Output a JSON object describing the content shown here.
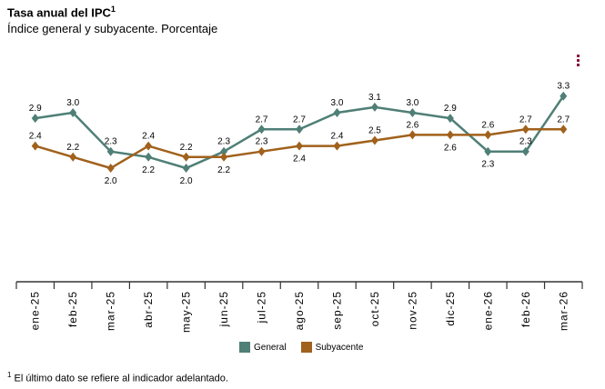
{
  "title": "Tasa anual del IPC",
  "title_sup": "1",
  "subtitle": "Índice general y subyacente. Porcentaje",
  "footnote_mark": "1",
  "footnote": "El último dato se refiere al indicador adelantado.",
  "chart_data": {
    "type": "line",
    "categories": [
      "ene-25",
      "feb-25",
      "mar-25",
      "abr-25",
      "may-25",
      "jun-25",
      "jul-25",
      "ago-25",
      "sep-25",
      "oct-25",
      "nov-25",
      "dic-25",
      "ene-26",
      "feb-26",
      "mar-26"
    ],
    "series": [
      {
        "name": "General",
        "color": "#4f7f76",
        "values": [
          2.9,
          3.0,
          2.3,
          2.2,
          2.0,
          2.3,
          2.7,
          2.7,
          3.0,
          3.1,
          3.0,
          2.9,
          2.3,
          2.3,
          3.3
        ]
      },
      {
        "name": "Subyacente",
        "color": "#a0611c",
        "values": [
          2.4,
          2.2,
          2.0,
          2.4,
          2.2,
          2.2,
          2.3,
          2.4,
          2.4,
          2.5,
          2.6,
          2.6,
          2.6,
          2.7,
          2.7
        ]
      }
    ],
    "ylim": [
      0,
      3.5
    ],
    "grid": false,
    "data_labels": true,
    "legend_position": "bottom"
  }
}
